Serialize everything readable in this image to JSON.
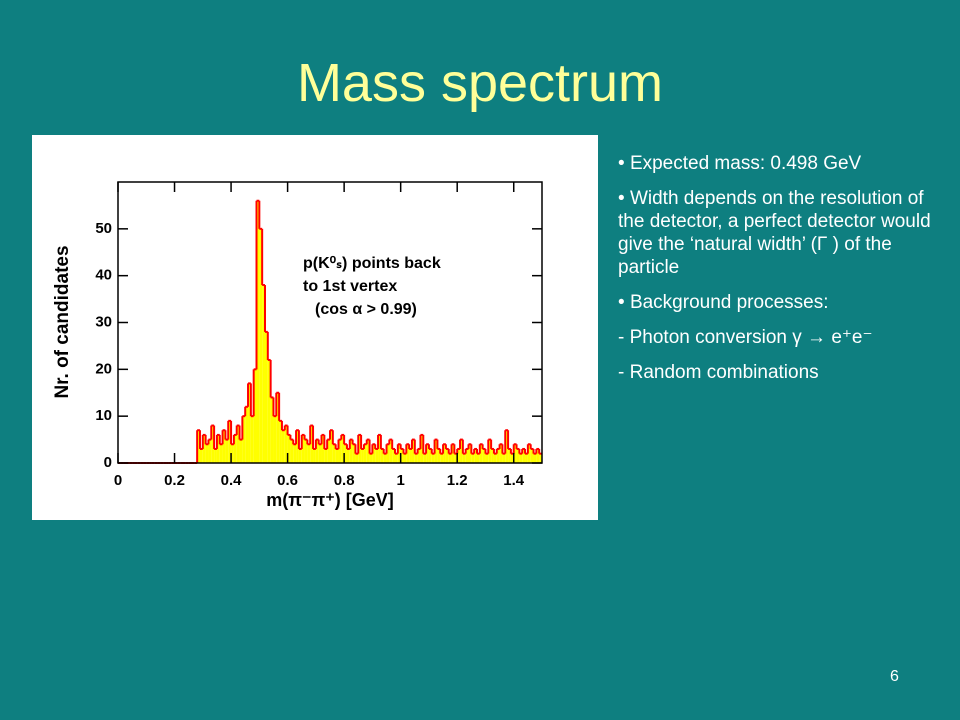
{
  "slide": {
    "title": "Mass spectrum",
    "bullets": [
      "Expected mass: 0.498 GeV",
      "Width depends on the resolution of the detector, a perfect detector would give the ‘natural width’ (Γ ) of the particle",
      "Background processes:"
    ],
    "sub_items": [
      "- Photon conversion γ → e⁺e⁻",
      "- Random combinations"
    ],
    "page_number": "6"
  },
  "chart_data": {
    "type": "histogram",
    "x_label": "m(π⁻π⁺) [GeV]",
    "y_label": "Nr. of candidates",
    "annotation": [
      "p(K⁰ₛ) points back",
      "to 1st vertex",
      "(cos α > 0.99)"
    ],
    "fill_color": "#ffff00",
    "line_color": "#ff0000",
    "xlim": [
      0,
      1.5
    ],
    "ylim": [
      0,
      60
    ],
    "xticks": [
      0,
      0.2,
      0.4,
      0.6,
      0.8,
      1,
      1.2,
      1.4
    ],
    "yticks": [
      0,
      10,
      20,
      30,
      40,
      50
    ],
    "bins": [
      0,
      0.01,
      0.02,
      0.03,
      0.04,
      0.05,
      0.06,
      0.07,
      0.08,
      0.09,
      0.1,
      0.11,
      0.12,
      0.13,
      0.14,
      0.15,
      0.16,
      0.17,
      0.18,
      0.19,
      0.2,
      0.21,
      0.22,
      0.23,
      0.24,
      0.25,
      0.26,
      0.27,
      0.28,
      0.29,
      0.3,
      0.31,
      0.32,
      0.33,
      0.34,
      0.35,
      0.36,
      0.37,
      0.38,
      0.39,
      0.4,
      0.41,
      0.42,
      0.43,
      0.44,
      0.45,
      0.46,
      0.47,
      0.48,
      0.49,
      0.5,
      0.51,
      0.52,
      0.53,
      0.54,
      0.55,
      0.56,
      0.57,
      0.58,
      0.59,
      0.6,
      0.61,
      0.62,
      0.63,
      0.64,
      0.65,
      0.66,
      0.67,
      0.68,
      0.69,
      0.7,
      0.71,
      0.72,
      0.73,
      0.74,
      0.75,
      0.76,
      0.77,
      0.78,
      0.79,
      0.8,
      0.81,
      0.82,
      0.83,
      0.84,
      0.85,
      0.86,
      0.87,
      0.88,
      0.89,
      0.9,
      0.91,
      0.92,
      0.93,
      0.94,
      0.95,
      0.96,
      0.97,
      0.98,
      0.99,
      1,
      1.01,
      1.02,
      1.03,
      1.04,
      1.05,
      1.06,
      1.07,
      1.08,
      1.09,
      1.1,
      1.11,
      1.12,
      1.13,
      1.14,
      1.15,
      1.16,
      1.17,
      1.18,
      1.19,
      1.2,
      1.21,
      1.22,
      1.23,
      1.24,
      1.25,
      1.26,
      1.27,
      1.28,
      1.29,
      1.3,
      1.31,
      1.32,
      1.33,
      1.34,
      1.35,
      1.36,
      1.37,
      1.38,
      1.39,
      1.4,
      1.41,
      1.42,
      1.43,
      1.44,
      1.45,
      1.46,
      1.47,
      1.48,
      1.49,
      1.5
    ],
    "counts": [
      0,
      0,
      0,
      0,
      0,
      0,
      0,
      0,
      0,
      0,
      0,
      0,
      0,
      0,
      0,
      0,
      0,
      0,
      0,
      0,
      0,
      0,
      0,
      0,
      0,
      0,
      0,
      0,
      7,
      3,
      6,
      4,
      5,
      8,
      3,
      6,
      4,
      7,
      5,
      9,
      4,
      6,
      8,
      5,
      10,
      12,
      17,
      10,
      20,
      56,
      50,
      38,
      28,
      22,
      14,
      10,
      15,
      9,
      7,
      8,
      6,
      5,
      4,
      7,
      3,
      6,
      5,
      4,
      8,
      3,
      5,
      4,
      6,
      3,
      5,
      7,
      4,
      3,
      5,
      6,
      4,
      3,
      5,
      4,
      2,
      6,
      3,
      4,
      5,
      2,
      4,
      3,
      6,
      3,
      2,
      4,
      5,
      3,
      2,
      4,
      3,
      2,
      4,
      3,
      5,
      2,
      3,
      6,
      2,
      4,
      3,
      2,
      5,
      3,
      2,
      4,
      3,
      2,
      4,
      2,
      3,
      5,
      2,
      3,
      4,
      2,
      3,
      2,
      4,
      3,
      2,
      5,
      3,
      2,
      3,
      4,
      2,
      7,
      3,
      2,
      4,
      3,
      2,
      3,
      2,
      4,
      3,
      2,
      3,
      2
    ]
  }
}
